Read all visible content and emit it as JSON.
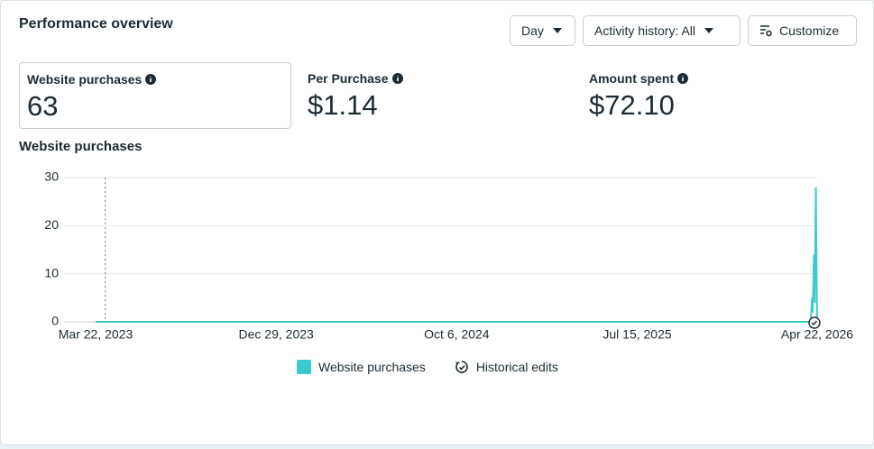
{
  "header": {
    "title": "Performance overview",
    "buttons": [
      "Day",
      "Activity history: All",
      "Customize"
    ]
  },
  "metrics": [
    {
      "label": "Website purchases",
      "value": "63"
    },
    {
      "label": "Per Purchase",
      "value": "$1.14"
    },
    {
      "label": "Amount spent",
      "value": "$72.10"
    }
  ],
  "chart_data": {
    "type": "line",
    "title": "Website purchases",
    "x": [
      "Mar 22, 2023",
      "Apr 12, 2026",
      "Apr 14, 2026",
      "Apr 15, 2026",
      "Apr 17, 2026",
      "Apr 18, 2026",
      "Apr 20, 2026",
      "Apr 21, 2026",
      "Apr 22, 2026"
    ],
    "series": [
      {
        "name": "Website purchases",
        "color": "#3ccbcb",
        "values": [
          0,
          0,
          5,
          2,
          14,
          4,
          28,
          10,
          0
        ]
      }
    ],
    "xlim": [
      "Mar 22, 2023",
      "Apr 22, 2026"
    ],
    "xticks": [
      "Mar 22, 2023",
      "Dec 29, 2023",
      "Oct 6, 2024",
      "Jul 15, 2025",
      "Apr 22, 2026"
    ],
    "ylim": [
      0,
      30
    ],
    "yticks": [
      0,
      10,
      20,
      30
    ],
    "grid": true,
    "event_lines": [
      "Apr 6, 2023"
    ],
    "annotation_legend": "Historical edits"
  }
}
